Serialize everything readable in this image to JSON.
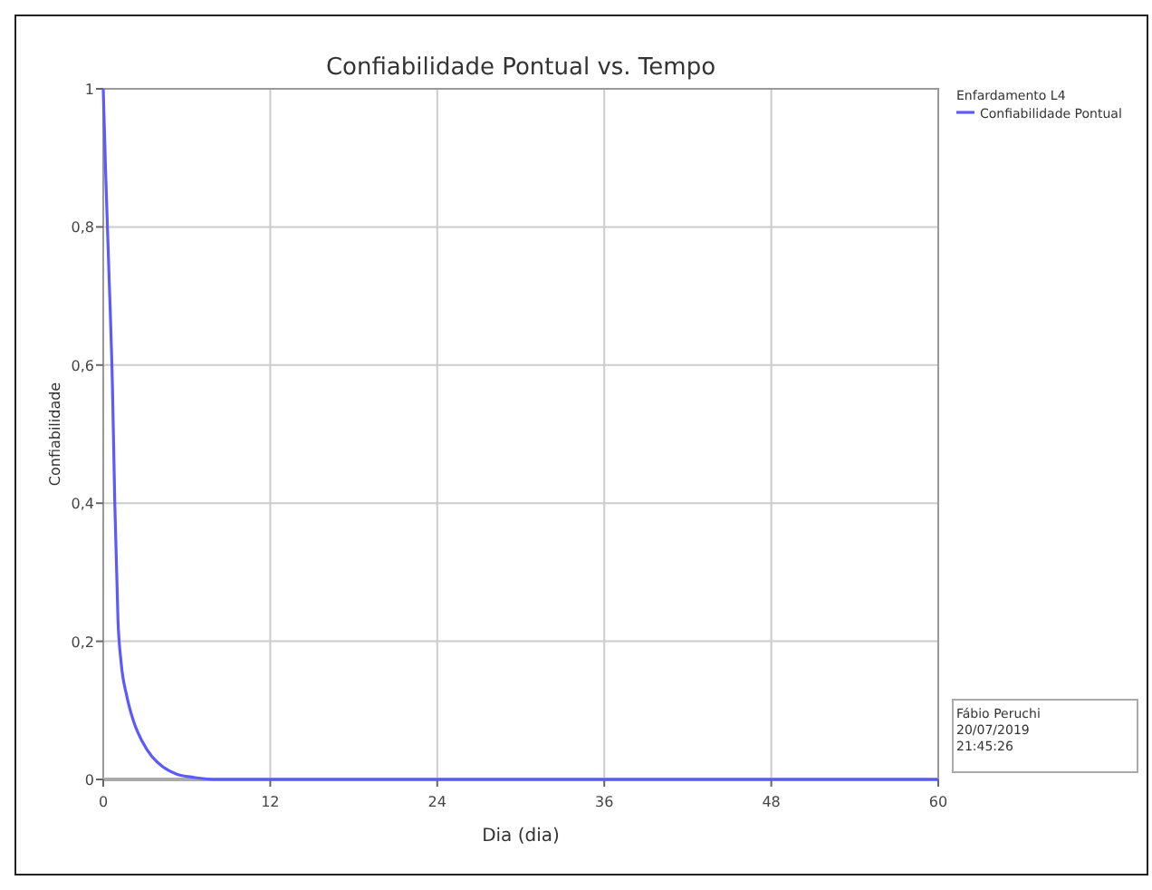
{
  "chart_data": {
    "type": "line",
    "title": "Confiabilidade Pontual vs. Tempo",
    "xlabel": "Dia (dia)",
    "ylabel": "Confiabilidade",
    "legend_title": "Enfardamento L4",
    "legend": "top right",
    "grid": true,
    "line_style": "solid",
    "annotations": [
      "Fábio Peruchi",
      "20/07/2019",
      "21:45:26"
    ],
    "xlim": [
      0,
      60
    ],
    "xticks": [
      0,
      12,
      24,
      36,
      48,
      60
    ],
    "ylim": [
      0,
      1
    ],
    "yticks": [
      0,
      {
        "value": 0.2,
        "label": "0,2"
      },
      {
        "value": 0.4,
        "label": "0,4"
      },
      {
        "value": 0.6,
        "label": "0,6"
      },
      {
        "value": 0.8,
        "label": "0,8"
      },
      1
    ],
    "series": [
      {
        "name": "Confiabilidade Pontual",
        "color": "#5a5aff",
        "x": [
          0,
          0.17,
          0.4,
          0.66,
          0.83,
          1.06,
          1.28,
          1.7,
          2.2,
          2.8,
          3.5,
          4.3,
          5.25,
          6.5,
          8.3,
          12,
          24,
          36,
          48,
          60
        ],
        "values": [
          1,
          0.88,
          0.74,
          0.57,
          0.4,
          0.23,
          0.17,
          0.12,
          0.083,
          0.055,
          0.033,
          0.018,
          0.008,
          0.003,
          0,
          0,
          0,
          0,
          0,
          0
        ]
      }
    ]
  }
}
